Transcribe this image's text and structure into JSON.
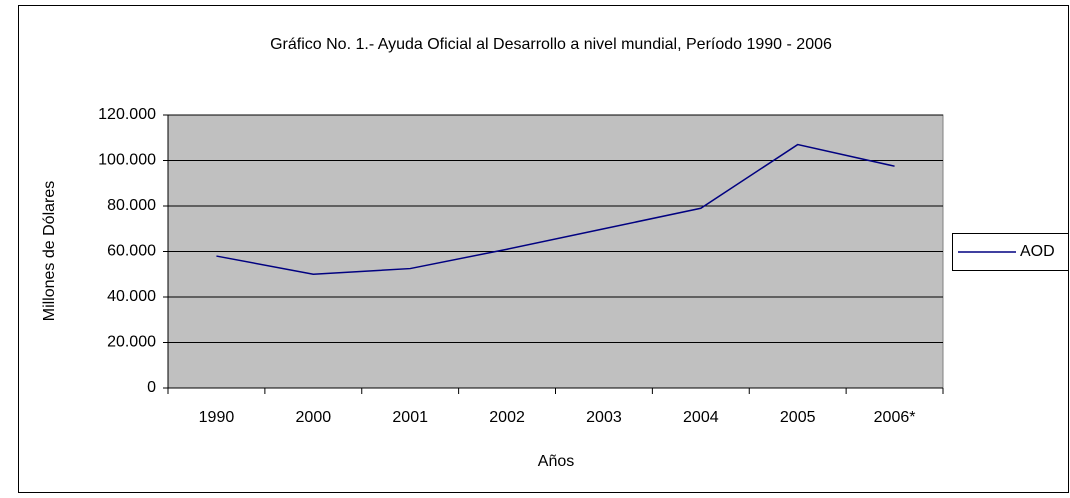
{
  "chart_data": {
    "type": "line",
    "title": "Gráfico No. 1.- Ayuda Oficial al Desarrollo a nivel mundial, Período 1990 - 2006",
    "x_label": "Años",
    "y_label": "Millones de Dólares",
    "categories": [
      "1990",
      "2000",
      "2001",
      "2002",
      "2003",
      "2004",
      "2005",
      "2006*"
    ],
    "series": [
      {
        "name": "AOD",
        "color": "#000080",
        "values": [
          58000,
          50000,
          52500,
          61000,
          70000,
          79000,
          107000,
          97500
        ]
      }
    ],
    "ylim": [
      0,
      120000
    ],
    "yticks": [
      0,
      {
        "value": 20000,
        "label": "20.000"
      },
      {
        "value": 40000,
        "label": "40.000"
      },
      {
        "value": 60000,
        "label": "60.000"
      },
      {
        "value": 80000,
        "label": "80.000"
      },
      {
        "value": 100000,
        "label": "100.000"
      },
      {
        "value": 120000,
        "label": "120.000"
      }
    ],
    "grid": true,
    "legend": "right"
  }
}
